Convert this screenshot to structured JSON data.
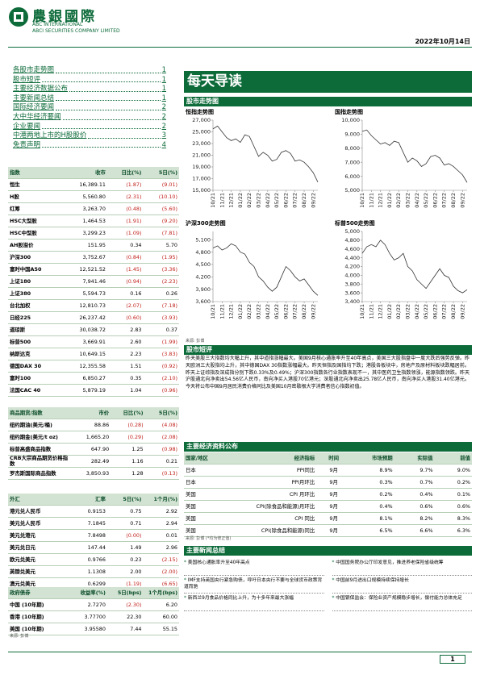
{
  "header": {
    "company_cn": "農銀國際",
    "company_en1": "ABC INTERNATIONAL",
    "company_en2": "ABCI SECURITIES COMPANY LIMITED",
    "date": "2022年10月14日"
  },
  "toc": [
    {
      "label": "各股市走势图",
      "page": "1"
    },
    {
      "label": "股市短评",
      "page": "1"
    },
    {
      "label": "主要经济数据公布",
      "page": "1"
    },
    {
      "label": "主要新闻总结",
      "page": "1"
    },
    {
      "label": "国际经济要闻",
      "page": "2"
    },
    {
      "label": "大中华经济要闻",
      "page": "2"
    },
    {
      "label": "企业要闻",
      "page": "2"
    },
    {
      "label": "中港两地上市的H股股价",
      "page": "3"
    },
    {
      "label": "免责声明",
      "page": "4"
    }
  ],
  "index_table": {
    "header": [
      "指数",
      "收市",
      "日比(%)",
      "5日(%)"
    ],
    "rows": [
      [
        "恒生",
        "16,389.11",
        "(1.87)",
        "(9.01)"
      ],
      [
        "H股",
        "5,560.80",
        "(2.31)",
        "(10.10)"
      ],
      [
        "红筹",
        "3,263.70",
        "(0.48)",
        "(5.60)"
      ],
      [
        "HSC大型股",
        "1,464.53",
        "(1.91)",
        "(9.20)"
      ],
      [
        "HSC中型股",
        "3,299.23",
        "(1.09)",
        "(7.81)"
      ],
      [
        "AH股溢价",
        "151.95",
        "0.34",
        "5.70"
      ],
      [
        "沪深300",
        "3,752.67",
        "(0.84)",
        "(1.95)"
      ],
      [
        "富时中国A50",
        "12,521.52",
        "(1.45)",
        "(3.36)"
      ],
      [
        "上证180",
        "7,941.46",
        "(0.94)",
        "(2.23)"
      ],
      [
        "上证380",
        "5,594.73",
        "0.16",
        "0.26"
      ],
      [
        "台北加权",
        "12,810.73",
        "(2.07)",
        "(7.18)"
      ],
      [
        "日经225",
        "26,237.42",
        "(0.60)",
        "(3.93)"
      ],
      [
        "道琼斯",
        "30,038.72",
        "2.83",
        "0.37"
      ],
      [
        "标普500",
        "3,669.91",
        "2.60",
        "(1.99)"
      ],
      [
        "纳斯达克",
        "10,649.15",
        "2.23",
        "(3.83)"
      ],
      [
        "德国DAX 30",
        "12,355.58",
        "1.51",
        "(0.92)"
      ],
      [
        "富时100",
        "6,850.27",
        "0.35",
        "(2.10)"
      ],
      [
        "法国CAC 40",
        "5,879.19",
        "1.04",
        "(0.96)"
      ]
    ]
  },
  "commodity_table": {
    "header": [
      "商品期货/指数",
      "市价",
      "日比(%)",
      "5日(%)"
    ],
    "rows": [
      [
        "纽约期油(美元/桶)",
        "88.86",
        "(0.28)",
        "(4.08)"
      ],
      [
        "纽约期金(美元/t oz)",
        "1,665.20",
        "(0.29)",
        "(2.08)"
      ],
      [
        "标普高盛商品指数",
        "647.90",
        "1.25",
        "(0.98)"
      ],
      [
        "CRB大宗商品期货价格指数",
        "282.49",
        "1.16",
        "0.21"
      ],
      [
        "罗杰斯国际商品指数",
        "3,850.93",
        "1.28",
        "(0.13)"
      ]
    ]
  },
  "fx_table": {
    "header": [
      "外汇",
      "汇率",
      "5日(%)",
      "1个月(%)"
    ],
    "rows": [
      [
        "港元兑人民币",
        "0.9153",
        "0.75",
        "2.92"
      ],
      [
        "美元兑人民币",
        "7.1845",
        "0.71",
        "2.94"
      ],
      [
        "美元兑港元",
        "7.8498",
        "(0.00)",
        "0.01"
      ],
      [
        "美元兑日元",
        "147.44",
        "1.49",
        "2.96"
      ],
      [
        "欧元兑美元",
        "0.9766",
        "0.23",
        "(2.15)"
      ],
      [
        "英镑兑美元",
        "1.1308",
        "2.00",
        "(2.00)"
      ],
      [
        "澳元兑美元",
        "0.6299",
        "(1.19)",
        "(6.65)"
      ]
    ]
  },
  "bond_table": {
    "header": [
      "政府债券",
      "收益率(%)",
      "5日(bps)",
      "1个月(bps)"
    ],
    "rows": [
      [
        "中国 (10年期)",
        "2.7270",
        "(2.30)",
        "6.20"
      ],
      [
        "香港 (10年期)",
        "3.77700",
        "22.30",
        "60.00"
      ],
      [
        "美国 (10年期)",
        "3.95580",
        "7.44",
        "55.15"
      ]
    ]
  },
  "left_source": "来源: 彭博",
  "banner": "每天导读",
  "charts_heading": "股市走势图",
  "chart_data": [
    {
      "type": "line",
      "title": "恒指走势图",
      "color": "#333333",
      "categories": [
        "10/21",
        null,
        "11/21",
        null,
        "12/21",
        null,
        "01/22",
        null,
        "02/22",
        null,
        "03/22",
        null,
        "04/22",
        null,
        "05/22",
        null,
        "06/22",
        null,
        "07/22",
        null,
        "08/22",
        null,
        "09/22",
        null
      ],
      "values": [
        25500,
        26000,
        25000,
        24000,
        23500,
        23800,
        23200,
        24500,
        24200,
        22500,
        20800,
        21500,
        21000,
        20000,
        20300,
        21500,
        21800,
        21300,
        20000,
        20200,
        19800,
        19000,
        18000,
        16400
      ],
      "ylim": [
        15000,
        27000
      ],
      "yticks": [
        {
          "value": 15000,
          "label": "15,000"
        },
        {
          "value": 17000,
          "label": "17,000"
        },
        {
          "value": 19000,
          "label": "19,000"
        },
        {
          "value": 21000,
          "label": "21,000"
        },
        {
          "value": 23000,
          "label": "23,000"
        },
        {
          "value": 25000,
          "label": "25,000"
        },
        {
          "value": 27000,
          "label": "27,000"
        }
      ]
    },
    {
      "type": "line",
      "title": "国指走势图",
      "color": "#333333",
      "categories": [
        "10/21",
        null,
        "11/21",
        null,
        "12/21",
        null,
        "01/22",
        null,
        "02/22",
        null,
        "03/22",
        null,
        "04/22",
        null,
        "05/22",
        null,
        "06/22",
        null,
        "07/22",
        null,
        "08/22",
        null,
        "09/22",
        null
      ],
      "values": [
        9200,
        9300,
        8900,
        8600,
        8300,
        8400,
        8200,
        8500,
        8400,
        7700,
        7000,
        7300,
        7100,
        6700,
        6900,
        7400,
        7500,
        7300,
        6800,
        6900,
        6700,
        6400,
        6100,
        5560
      ],
      "ylim": [
        5000,
        10000
      ],
      "yticks": [
        {
          "value": 5000,
          "label": "5,000"
        },
        {
          "value": 6000,
          "label": "6,000"
        },
        {
          "value": 7000,
          "label": "7,000"
        },
        {
          "value": 8000,
          "label": "8,000"
        },
        {
          "value": 9000,
          "label": "9,000"
        },
        {
          "value": 10000,
          "label": "10,000"
        }
      ]
    },
    {
      "type": "line",
      "title": "沪深300走势图",
      "color": "#333333",
      "categories": [
        "10/21",
        null,
        "11/21",
        null,
        "12/21",
        null,
        "01/22",
        null,
        "02/22",
        null,
        "03/22",
        null,
        "04/22",
        null,
        "05/22",
        null,
        "06/22",
        null,
        "07/22",
        null,
        "08/22",
        null,
        "09/22",
        null
      ],
      "values": [
        4900,
        4950,
        4850,
        4900,
        5000,
        4950,
        4800,
        4750,
        4550,
        4450,
        4200,
        4100,
        3950,
        3850,
        3950,
        4200,
        4450,
        4350,
        4200,
        4100,
        4150,
        4000,
        3850,
        3750
      ],
      "ylim": [
        3600,
        5300
      ],
      "yticks": [
        {
          "value": 3600,
          "label": "3,600"
        },
        {
          "value": 3900,
          "label": "3,900"
        },
        {
          "value": 4200,
          "label": "4,200"
        },
        {
          "value": 4500,
          "label": "4,500"
        },
        {
          "value": 4800,
          "label": "4,800"
        },
        {
          "value": 5100,
          "label": "5,100"
        }
      ]
    },
    {
      "type": "line",
      "title": "标普500走势图",
      "color": "#333333",
      "categories": [
        "10/21",
        null,
        "11/21",
        null,
        "12/21",
        null,
        "01/22",
        null,
        "02/22",
        null,
        "03/22",
        null,
        "04/22",
        null,
        "05/22",
        null,
        "06/22",
        null,
        "07/22",
        null,
        "08/22",
        null,
        "09/22",
        null
      ],
      "values": [
        4500,
        4650,
        4700,
        4650,
        4800,
        4700,
        4500,
        4350,
        4400,
        4500,
        4200,
        4100,
        3900,
        3800,
        3700,
        3850,
        4000,
        4150,
        4000,
        3950,
        3750,
        3650,
        3600,
        3670
      ],
      "ylim": [
        3400,
        5000
      ],
      "yticks": [
        {
          "value": 3400,
          "label": "3,400"
        },
        {
          "value": 3600,
          "label": "3,600"
        },
        {
          "value": 3800,
          "label": "3,800"
        },
        {
          "value": 4000,
          "label": "4,000"
        },
        {
          "value": 4200,
          "label": "4,200"
        },
        {
          "value": 4400,
          "label": "4,400"
        },
        {
          "value": 4600,
          "label": "4,600"
        },
        {
          "value": 4800,
          "label": "4,800"
        },
        {
          "value": 5000,
          "label": "5,000"
        }
      ]
    }
  ],
  "chart_source": "来源: 彭博",
  "commentary": {
    "heading": "股市短评",
    "text": "昨天美股三大指数均大幅上升，其中道指涨幅最大。美国9月核心通胀率升至40年高点，美国三大股指盘中一度大跌后强势反弹。昨天欧洲三大股指均上升，其中德国DAX 30指数涨幅最大。昨天恒指及国指均下跌；港股各板块中，房地产及原材料板块跌幅居前。昨天上证综指及深成指分别下跌0.33%及0.49%；沪深300指数各行业指数表现不一，其中医药卫生指数领涨，能源指数领跌。昨天沪股通北向净卖出54.56亿人民币，南向净买入港股70亿港元；深股通北向净卖出25.78亿人民币，南向净买入港股31.40亿港元。今天将公布中国9月居民消费价格同比及美国10月密歇根大学消费者信心指数初值。"
  },
  "econ": {
    "heading": "主要经济资料公布",
    "header": [
      "国家/地区",
      "经济指标",
      "时间",
      "市场预期",
      "实际值",
      "前值"
    ],
    "rows": [
      [
        "日本",
        "PPI同比",
        "9月",
        "8.9%",
        "9.7%",
        "9.0%"
      ],
      [
        "日本",
        "PPI月环比",
        "9月",
        "0.3%",
        "0.7%",
        "0.2%"
      ],
      [
        "美国",
        "CPI 月环比",
        "9月",
        "0.2%",
        "0.4%",
        "0.1%"
      ],
      [
        "美国",
        "CPI(除食品和能源)月环比",
        "9月",
        "0.4%",
        "0.6%",
        "0.6%"
      ],
      [
        "美国",
        "CPI 同比",
        "9月",
        "8.1%",
        "8.2%",
        "8.3%"
      ],
      [
        "美国",
        "CPI(除食品和能源)同比",
        "9月",
        "6.5%",
        "6.6%",
        "6.3%"
      ]
    ],
    "source": "来源: 彭博 (*均为修正值)"
  },
  "news": {
    "heading": "主要新闻总结",
    "items": [
      "美国核心通胀率升至40年高点",
      "中国国务院办公厅印发意见，推进养老保险省级统筹",
      "IMF支持英国央行紧急购债，呼吁日本央行不要与全球货币政策背道而驰",
      "中国前9月进出口规模持续保持增长",
      "新西兰9月食品价格同比上升，为十多年来最大涨幅",
      "中国银保监会：保险业资产规模稳步增长，偿付能力总体充足"
    ]
  },
  "footer": {
    "page": "1"
  }
}
